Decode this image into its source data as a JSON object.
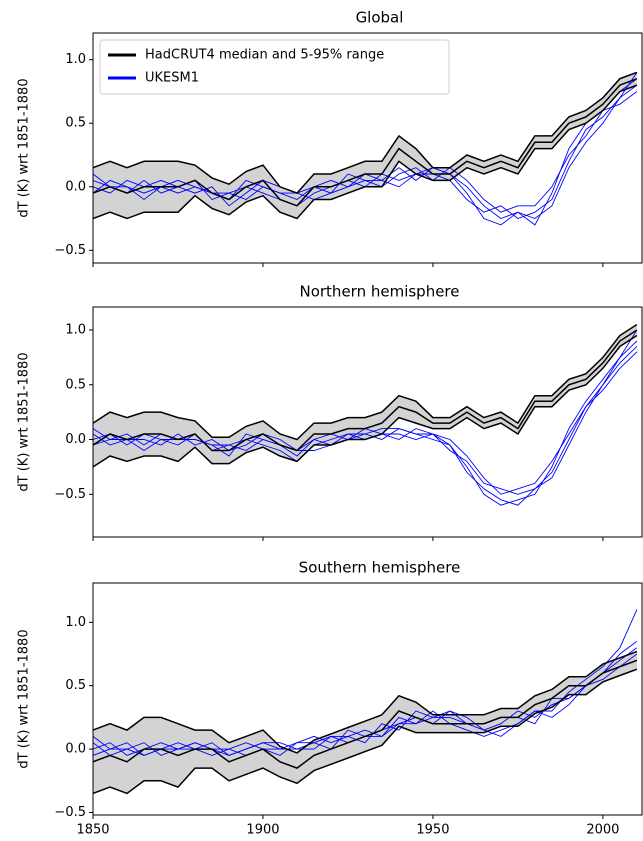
{
  "chart_data": [
    {
      "type": "line",
      "title": "Global",
      "ylabel": "dT (K) wrt 1851-1880",
      "x": [
        1850,
        1855,
        1860,
        1865,
        1870,
        1875,
        1880,
        1885,
        1890,
        1895,
        1900,
        1905,
        1910,
        1915,
        1920,
        1925,
        1930,
        1935,
        1940,
        1945,
        1950,
        1955,
        1960,
        1965,
        1970,
        1975,
        1980,
        1985,
        1990,
        1995,
        2000,
        2005,
        2010
      ],
      "xlim": [
        1850,
        2011.5
      ],
      "xticks": [
        1850,
        1900,
        1950,
        2000
      ],
      "xticklabels": false,
      "ylim": [
        -0.6,
        1.21
      ],
      "yticks": [
        {
          "value": -0.5,
          "label": "−0.5"
        },
        {
          "value": 0,
          "label": "0.0"
        },
        0.5,
        {
          "value": 1,
          "label": "1.0"
        }
      ],
      "legend": "upper left",
      "observed": {
        "name": "HadCRUT4 median and 5-95% range",
        "color": "#000000",
        "band_color": "#d3d3d3",
        "median": [
          -0.05,
          0,
          -0.05,
          0,
          0,
          0,
          0.05,
          -0.05,
          -0.1,
          0,
          0.05,
          -0.1,
          -0.15,
          0,
          0,
          0.05,
          0.1,
          0.1,
          0.3,
          0.2,
          0.1,
          0.1,
          0.2,
          0.15,
          0.2,
          0.15,
          0.35,
          0.35,
          0.5,
          0.55,
          0.65,
          0.8,
          0.85
        ],
        "lower": [
          -0.25,
          -0.2,
          -0.25,
          -0.2,
          -0.2,
          -0.2,
          -0.07,
          -0.17,
          -0.22,
          -0.12,
          -0.07,
          -0.2,
          -0.25,
          -0.1,
          -0.1,
          -0.05,
          0,
          0,
          0.2,
          0.1,
          0.05,
          0.05,
          0.15,
          0.1,
          0.15,
          0.1,
          0.3,
          0.3,
          0.45,
          0.5,
          0.6,
          0.75,
          0.8
        ],
        "upper": [
          0.15,
          0.2,
          0.15,
          0.2,
          0.2,
          0.2,
          0.17,
          0.07,
          0.02,
          0.12,
          0.17,
          0,
          -0.05,
          0.1,
          0.1,
          0.15,
          0.2,
          0.2,
          0.4,
          0.3,
          0.15,
          0.15,
          0.25,
          0.2,
          0.25,
          0.2,
          0.4,
          0.4,
          0.55,
          0.6,
          0.7,
          0.85,
          0.9
        ]
      },
      "ensemble": {
        "name": "UKESM1",
        "color": "#0000ff",
        "members": [
          [
            0.05,
            0,
            -0.05,
            0.05,
            -0.05,
            0,
            0.05,
            -0.1,
            -0.05,
            0,
            -0.05,
            -0.1,
            -0.15,
            -0.05,
            0,
            0.05,
            0,
            0.1,
            0.05,
            0.1,
            0.1,
            0.05,
            -0.1,
            -0.2,
            -0.15,
            -0.25,
            -0.2,
            -0.1,
            0.2,
            0.45,
            0.55,
            0.7,
            0.8
          ],
          [
            -0.05,
            0.05,
            0,
            -0.05,
            0,
            -0.05,
            0,
            -0.05,
            -0.1,
            0.05,
            0,
            -0.05,
            -0.1,
            0,
            0.05,
            0,
            0.05,
            0.05,
            0.15,
            0.05,
            0.15,
            0.1,
            0,
            -0.15,
            -0.25,
            -0.2,
            -0.3,
            -0.05,
            0.3,
            0.5,
            0.6,
            0.75,
            0.85
          ],
          [
            0,
            -0.05,
            0.05,
            0,
            0.05,
            0,
            -0.05,
            0,
            -0.15,
            -0.05,
            0.05,
            0,
            -0.05,
            -0.1,
            -0.05,
            0.1,
            0.05,
            0,
            0.1,
            0.15,
            0.05,
            0.15,
            0.05,
            -0.1,
            -0.2,
            -0.15,
            -0.15,
            0,
            0.25,
            0.4,
            0.6,
            0.65,
            0.75
          ],
          [
            0.1,
            0,
            0,
            -0.1,
            0,
            0.05,
            0,
            -0.05,
            -0.05,
            -0.1,
            0,
            -0.05,
            -0.05,
            0,
            -0.05,
            0,
            0.1,
            0.05,
            0,
            0.1,
            0.15,
            0.1,
            -0.05,
            -0.25,
            -0.3,
            -0.2,
            -0.25,
            -0.15,
            0.15,
            0.35,
            0.5,
            0.7,
            0.9
          ]
        ]
      }
    },
    {
      "type": "line",
      "title": "Northern hemisphere",
      "ylabel": "dT (K) wrt 1851-1880",
      "x": [
        1850,
        1855,
        1860,
        1865,
        1870,
        1875,
        1880,
        1885,
        1890,
        1895,
        1900,
        1905,
        1910,
        1915,
        1920,
        1925,
        1930,
        1935,
        1940,
        1945,
        1950,
        1955,
        1960,
        1965,
        1970,
        1975,
        1980,
        1985,
        1990,
        1995,
        2000,
        2005,
        2010
      ],
      "xlim": [
        1850,
        2011.5
      ],
      "xticks": [
        1850,
        1900,
        1950,
        2000
      ],
      "xticklabels": false,
      "ylim": [
        -0.89,
        1.21
      ],
      "yticks": [
        {
          "value": -0.5,
          "label": "−0.5"
        },
        {
          "value": 0,
          "label": "0.0"
        },
        0.5,
        {
          "value": 1,
          "label": "1.0"
        }
      ],
      "observed": {
        "color": "#000000",
        "band_color": "#d3d3d3",
        "median": [
          -0.05,
          0.05,
          0,
          0.05,
          0.05,
          0,
          0.05,
          -0.1,
          -0.1,
          0,
          0.05,
          -0.05,
          -0.1,
          0.05,
          0.05,
          0.1,
          0.1,
          0.15,
          0.3,
          0.25,
          0.15,
          0.15,
          0.25,
          0.15,
          0.2,
          0.1,
          0.35,
          0.35,
          0.5,
          0.55,
          0.7,
          0.9,
          1.0
        ],
        "lower": [
          -0.25,
          -0.15,
          -0.2,
          -0.15,
          -0.15,
          -0.2,
          -0.07,
          -0.22,
          -0.22,
          -0.12,
          -0.07,
          -0.15,
          -0.2,
          -0.05,
          -0.05,
          0,
          0,
          0.05,
          0.2,
          0.15,
          0.1,
          0.1,
          0.2,
          0.1,
          0.15,
          0.05,
          0.3,
          0.3,
          0.45,
          0.5,
          0.65,
          0.85,
          0.95
        ],
        "upper": [
          0.15,
          0.25,
          0.2,
          0.25,
          0.25,
          0.2,
          0.17,
          0.02,
          0.02,
          0.12,
          0.17,
          0.05,
          0,
          0.15,
          0.15,
          0.2,
          0.2,
          0.25,
          0.4,
          0.35,
          0.2,
          0.2,
          0.3,
          0.2,
          0.25,
          0.15,
          0.4,
          0.4,
          0.55,
          0.6,
          0.75,
          0.95,
          1.05
        ]
      },
      "ensemble": {
        "color": "#0000ff",
        "members": [
          [
            0,
            0.05,
            -0.05,
            0.05,
            0,
            -0.05,
            0.05,
            -0.1,
            -0.05,
            0,
            -0.05,
            -0.1,
            -0.2,
            -0.05,
            0,
            0.05,
            0,
            0.05,
            0.05,
            0,
            0.05,
            -0.1,
            -0.2,
            -0.4,
            -0.45,
            -0.5,
            -0.45,
            -0.3,
            0,
            0.3,
            0.5,
            0.7,
            0.85
          ],
          [
            -0.05,
            0,
            0.05,
            -0.05,
            0.05,
            0,
            0,
            -0.05,
            -0.15,
            0.05,
            0,
            -0.05,
            -0.15,
            0,
            0.05,
            0,
            0.05,
            0.1,
            0.1,
            0.05,
            0,
            -0.05,
            -0.25,
            -0.5,
            -0.6,
            -0.55,
            -0.5,
            -0.25,
            0.1,
            0.35,
            0.55,
            0.75,
            0.9
          ],
          [
            0.05,
            -0.05,
            0,
            0,
            -0.05,
            0.05,
            -0.05,
            0,
            -0.1,
            -0.05,
            0.05,
            0,
            -0.1,
            -0.1,
            -0.05,
            0.05,
            0.05,
            0,
            0.1,
            0.05,
            0.05,
            0,
            -0.15,
            -0.35,
            -0.5,
            -0.45,
            -0.4,
            -0.2,
            0.05,
            0.3,
            0.45,
            0.65,
            0.8
          ],
          [
            0.1,
            0,
            0,
            -0.1,
            0,
            0,
            0,
            -0.05,
            -0.05,
            -0.1,
            0,
            -0.05,
            -0.1,
            0,
            -0.05,
            0,
            0.1,
            0.05,
            0,
            0.1,
            0.05,
            -0.05,
            -0.3,
            -0.45,
            -0.55,
            -0.6,
            -0.45,
            -0.35,
            -0.05,
            0.25,
            0.5,
            0.75,
            1.0
          ]
        ]
      }
    },
    {
      "type": "line",
      "title": "Southern hemisphere",
      "ylabel": "dT (K) wrt 1851-1880",
      "x": [
        1850,
        1855,
        1860,
        1865,
        1870,
        1875,
        1880,
        1885,
        1890,
        1895,
        1900,
        1905,
        1910,
        1915,
        1920,
        1925,
        1930,
        1935,
        1940,
        1945,
        1950,
        1955,
        1960,
        1965,
        1970,
        1975,
        1980,
        1985,
        1990,
        1995,
        2000,
        2005,
        2010
      ],
      "xlim": [
        1850,
        2011.5
      ],
      "xticks": [
        1850,
        1900,
        1950,
        2000
      ],
      "xticklabels": true,
      "ylim": [
        -0.52,
        1.31
      ],
      "yticks": [
        {
          "value": -0.5,
          "label": "−0.5"
        },
        {
          "value": 0,
          "label": "0.0"
        },
        0.5,
        {
          "value": 1,
          "label": "1.0"
        }
      ],
      "observed": {
        "color": "#000000",
        "band_color": "#d3d3d3",
        "median": [
          -0.1,
          -0.05,
          -0.1,
          0,
          0,
          -0.05,
          0,
          0,
          -0.1,
          -0.05,
          0,
          -0.1,
          -0.15,
          -0.05,
          0,
          0.05,
          0.1,
          0.15,
          0.3,
          0.25,
          0.2,
          0.2,
          0.2,
          0.2,
          0.25,
          0.25,
          0.35,
          0.4,
          0.5,
          0.5,
          0.6,
          0.65,
          0.7
        ],
        "lower": [
          -0.35,
          -0.3,
          -0.35,
          -0.25,
          -0.25,
          -0.3,
          -0.15,
          -0.15,
          -0.25,
          -0.2,
          -0.15,
          -0.22,
          -0.27,
          -0.17,
          -0.12,
          -0.07,
          -0.02,
          0.03,
          0.18,
          0.13,
          0.13,
          0.13,
          0.13,
          0.13,
          0.18,
          0.18,
          0.28,
          0.33,
          0.43,
          0.43,
          0.53,
          0.58,
          0.63
        ],
        "upper": [
          0.15,
          0.2,
          0.15,
          0.25,
          0.25,
          0.2,
          0.15,
          0.15,
          0.05,
          0.1,
          0.15,
          0.02,
          -0.03,
          0.07,
          0.12,
          0.17,
          0.22,
          0.27,
          0.42,
          0.37,
          0.27,
          0.27,
          0.27,
          0.27,
          0.32,
          0.32,
          0.42,
          0.47,
          0.57,
          0.57,
          0.67,
          0.72,
          0.77
        ]
      },
      "ensemble": {
        "color": "#0000ff",
        "members": [
          [
            0,
            0.05,
            -0.05,
            0,
            0.05,
            0,
            0.05,
            0,
            -0.05,
            0,
            0.05,
            0,
            0,
            0.05,
            0.1,
            0.05,
            0.1,
            0.15,
            0.2,
            0.25,
            0.2,
            0.3,
            0.25,
            0.15,
            0.2,
            0.3,
            0.25,
            0.35,
            0.4,
            0.5,
            0.6,
            0.7,
            0.8
          ],
          [
            -0.05,
            0,
            0.05,
            -0.05,
            0,
            0.05,
            0,
            -0.05,
            0,
            0.05,
            0,
            -0.05,
            0.05,
            0.1,
            0.05,
            0.1,
            0.15,
            0.1,
            0.25,
            0.2,
            0.3,
            0.2,
            0.15,
            0.1,
            0.15,
            0.2,
            0.3,
            0.3,
            0.45,
            0.55,
            0.65,
            0.8,
            1.1
          ],
          [
            0.05,
            -0.05,
            0,
            0.05,
            -0.05,
            0,
            0,
            0.05,
            -0.05,
            0,
            0.05,
            0.05,
            0,
            0,
            0.1,
            0.1,
            0.05,
            0.2,
            0.15,
            0.3,
            0.25,
            0.25,
            0.2,
            0.2,
            0.25,
            0.25,
            0.2,
            0.4,
            0.4,
            0.5,
            0.55,
            0.65,
            0.75
          ],
          [
            0.1,
            0,
            0,
            -0.05,
            0,
            0,
            0.05,
            0,
            0,
            -0.05,
            0,
            0,
            0.05,
            0.05,
            0,
            0.15,
            0.1,
            0.1,
            0.2,
            0.2,
            0.25,
            0.3,
            0.2,
            0.15,
            0.1,
            0.2,
            0.3,
            0.25,
            0.35,
            0.5,
            0.6,
            0.75,
            0.85
          ]
        ]
      }
    }
  ]
}
